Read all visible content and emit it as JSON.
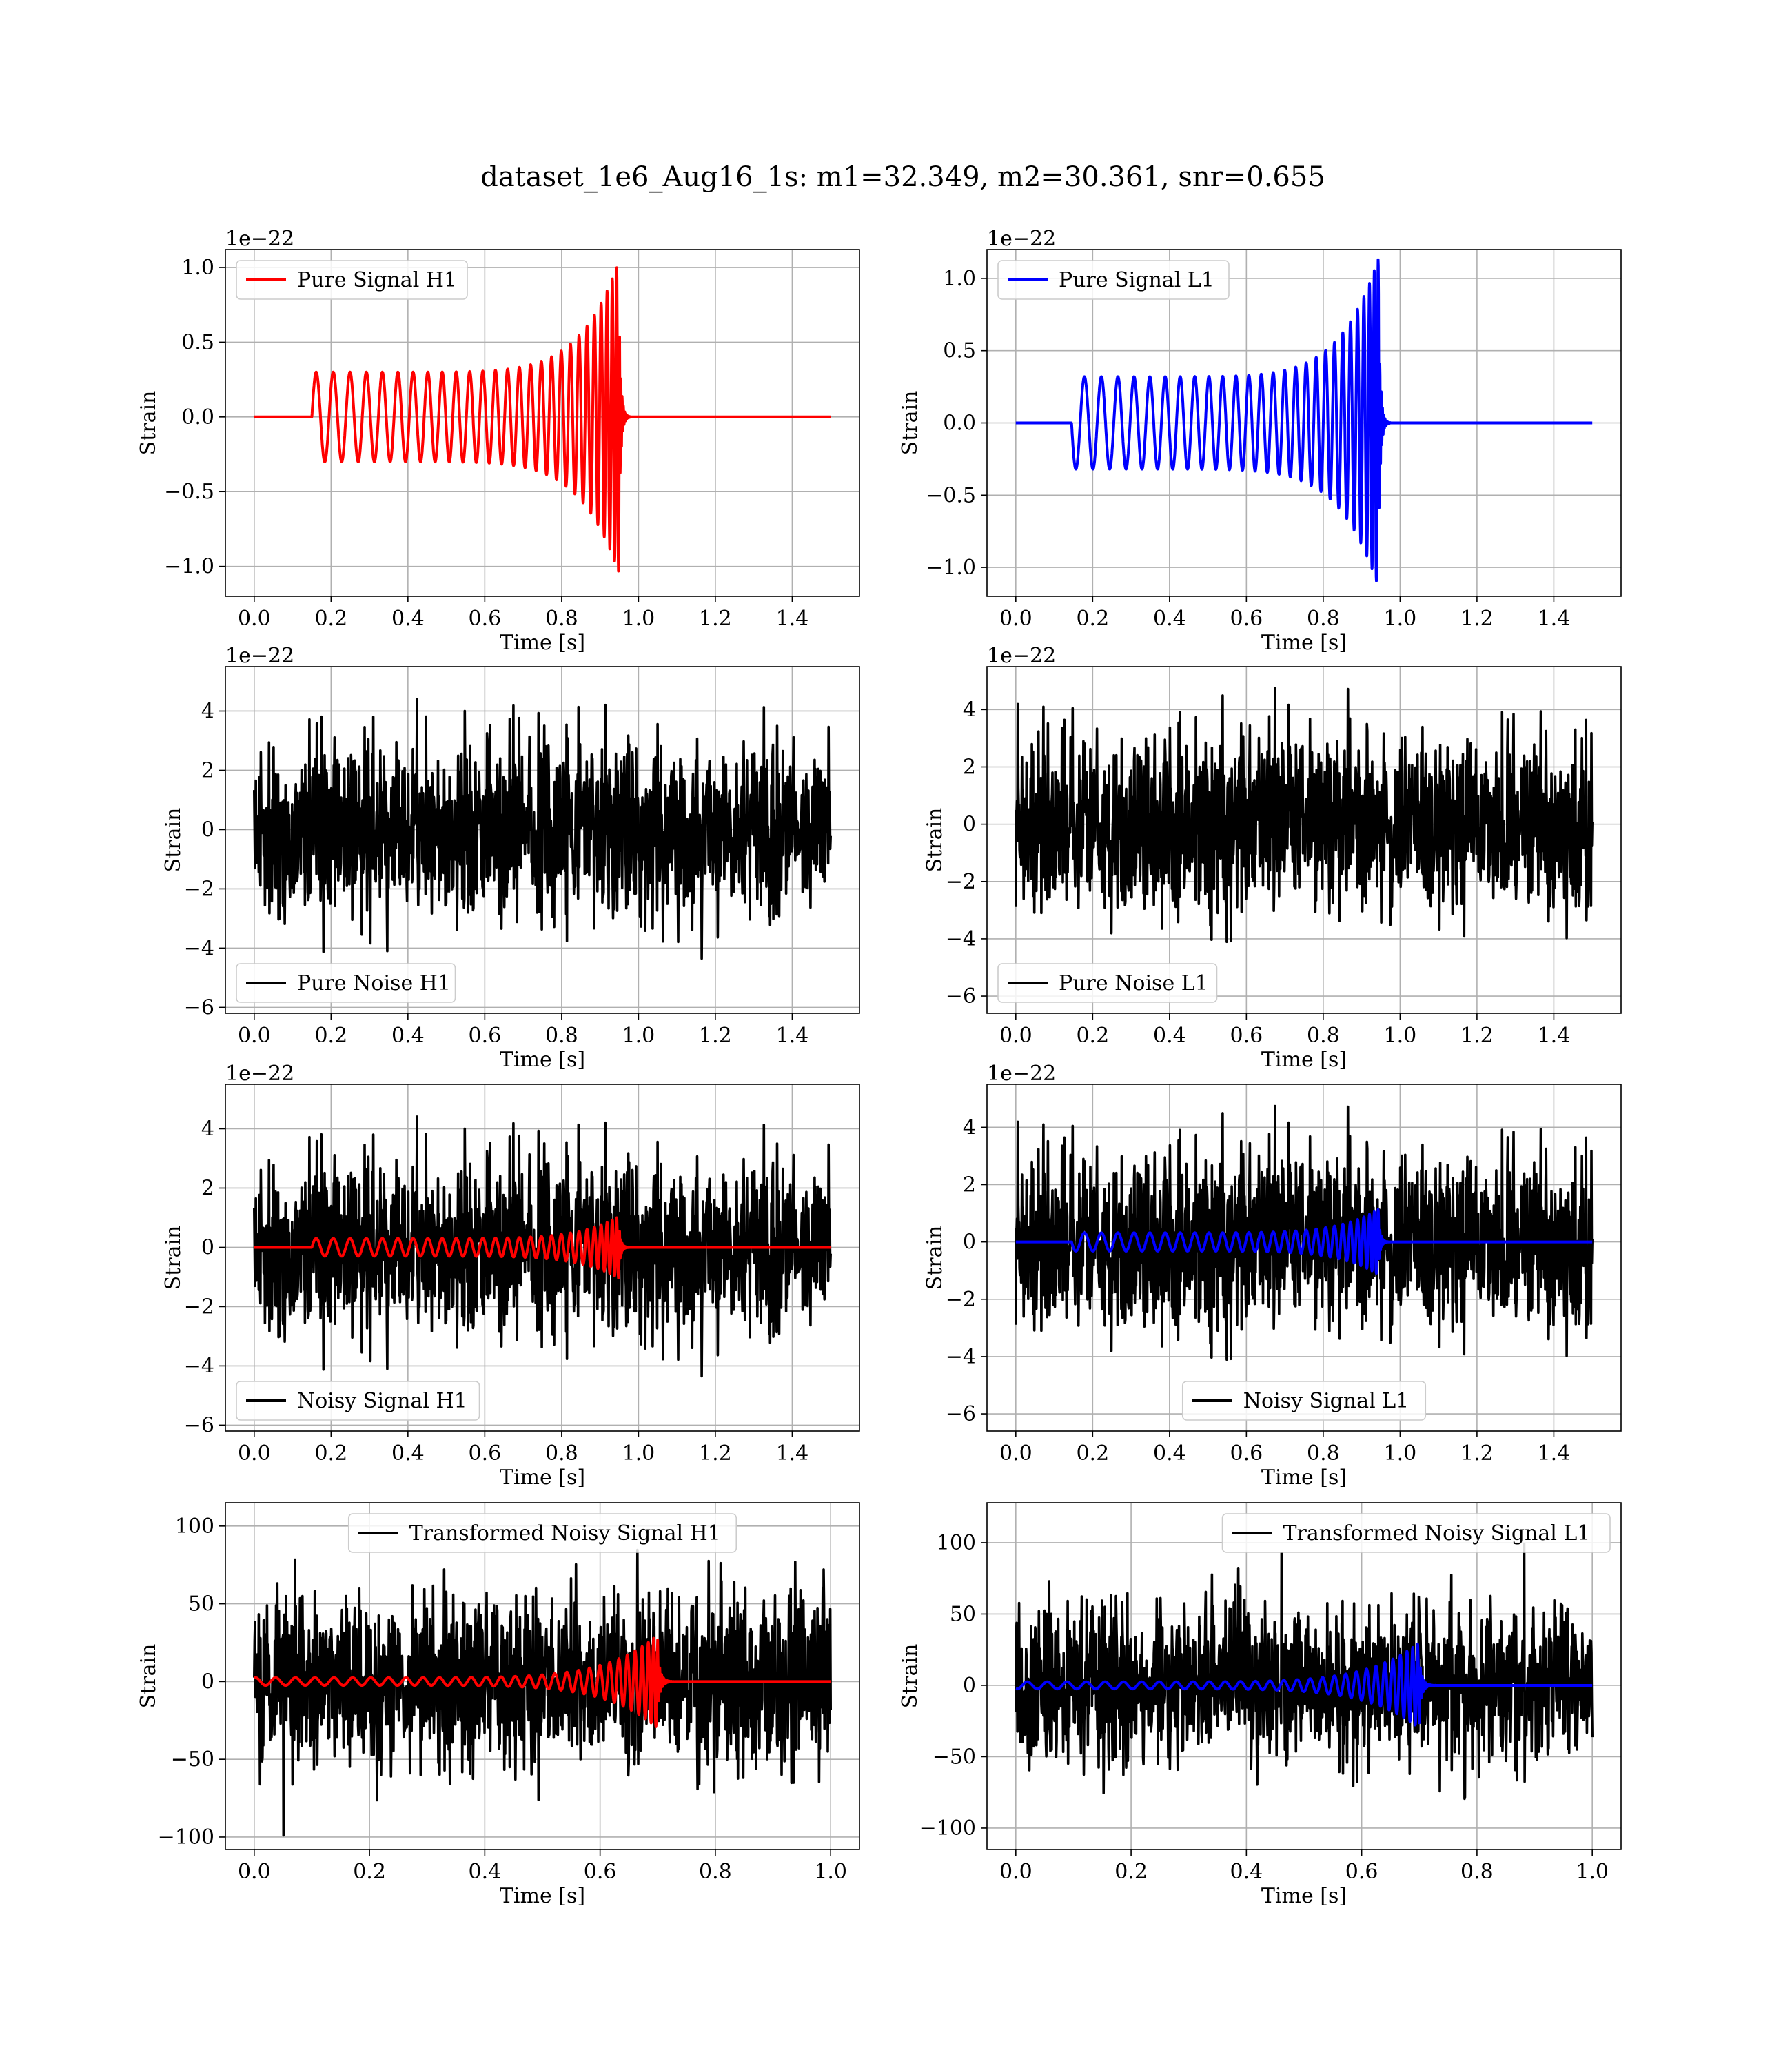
{
  "figure": {
    "suptitle": "dataset_1e6_Aug16_1s: m1=32.349, m2=30.361, snr=0.655"
  },
  "colors": {
    "h1_signal": "#ff0000",
    "l1_signal": "#0000ff",
    "noise": "#000000",
    "grid": "#b0b0b0",
    "legend_edge": "#cccccc"
  },
  "chart_data": [
    {
      "type": "line",
      "xlabel": "Time [s]",
      "ylabel": "Strain",
      "offset_text": "1e−22",
      "xlim": [
        -0.075,
        1.575
      ],
      "ylim": [
        -1.2,
        1.12
      ],
      "x_ticks": [
        0.0,
        0.2,
        0.4,
        0.6,
        0.8,
        1.0,
        1.2,
        1.4
      ],
      "x_tick_labels": [
        "0.0",
        "0.2",
        "0.4",
        "0.6",
        "0.8",
        "1.0",
        "1.2",
        "1.4"
      ],
      "y_ticks": [
        -1.0,
        -0.5,
        0.0,
        0.5,
        1.0
      ],
      "y_tick_labels": [
        "−1.0",
        "−0.5",
        "0.0",
        "0.5",
        "1.0"
      ],
      "grid": true,
      "legend_position": "upper left",
      "series": [
        {
          "name": "Pure Signal H1",
          "kind": "chirp",
          "color": "#ff0000",
          "x_range": [
            0,
            1.5
          ],
          "onset": 0.15,
          "merger": 0.95,
          "amp_start": 0.3,
          "amp_peak": 1.05,
          "cycles": 27,
          "phase": 0
        }
      ]
    },
    {
      "type": "line",
      "xlabel": "Time [s]",
      "ylabel": "Strain",
      "offset_text": "1e−22",
      "xlim": [
        -0.075,
        1.575
      ],
      "ylim": [
        -1.2,
        1.2
      ],
      "x_ticks": [
        0.0,
        0.2,
        0.4,
        0.6,
        0.8,
        1.0,
        1.2,
        1.4
      ],
      "x_tick_labels": [
        "0.0",
        "0.2",
        "0.4",
        "0.6",
        "0.8",
        "1.0",
        "1.2",
        "1.4"
      ],
      "y_ticks": [
        -1.0,
        -0.5,
        0.0,
        0.5,
        1.0
      ],
      "y_tick_labels": [
        "−1.0",
        "−0.5",
        "0.0",
        "0.5",
        "1.0"
      ],
      "grid": true,
      "legend_position": "upper left",
      "series": [
        {
          "name": "Pure Signal L1",
          "kind": "chirp",
          "color": "#0000ff",
          "x_range": [
            0,
            1.5
          ],
          "onset": 0.145,
          "merger": 0.945,
          "amp_start": 0.32,
          "amp_peak": 1.15,
          "cycles": 27,
          "phase": 3.14159
        }
      ]
    },
    {
      "type": "line",
      "xlabel": "Time [s]",
      "ylabel": "Strain",
      "offset_text": "1e−22",
      "xlim": [
        -0.075,
        1.575
      ],
      "ylim": [
        -6.2,
        5.5
      ],
      "x_ticks": [
        0.0,
        0.2,
        0.4,
        0.6,
        0.8,
        1.0,
        1.2,
        1.4
      ],
      "x_tick_labels": [
        "0.0",
        "0.2",
        "0.4",
        "0.6",
        "0.8",
        "1.0",
        "1.2",
        "1.4"
      ],
      "y_ticks": [
        -6,
        -4,
        -2,
        0,
        2,
        4
      ],
      "y_tick_labels": [
        "−6",
        "−4",
        "−2",
        "0",
        "2",
        "4"
      ],
      "grid": true,
      "legend_position": "lower left",
      "series": [
        {
          "name": "Pure Noise H1",
          "kind": "noise",
          "color": "#000000",
          "x_range": [
            0,
            1.5
          ],
          "std": 1.5,
          "seed": 11,
          "points": 1400
        }
      ]
    },
    {
      "type": "line",
      "xlabel": "Time [s]",
      "ylabel": "Strain",
      "offset_text": "1e−22",
      "xlim": [
        -0.075,
        1.575
      ],
      "ylim": [
        -6.6,
        5.5
      ],
      "x_ticks": [
        0.0,
        0.2,
        0.4,
        0.6,
        0.8,
        1.0,
        1.2,
        1.4
      ],
      "x_tick_labels": [
        "0.0",
        "0.2",
        "0.4",
        "0.6",
        "0.8",
        "1.0",
        "1.2",
        "1.4"
      ],
      "y_ticks": [
        -6,
        -4,
        -2,
        0,
        2,
        4
      ],
      "y_tick_labels": [
        "−6",
        "−4",
        "−2",
        "0",
        "2",
        "4"
      ],
      "grid": true,
      "legend_position": "lower left",
      "series": [
        {
          "name": "Pure Noise L1",
          "kind": "noise",
          "color": "#000000",
          "x_range": [
            0,
            1.5
          ],
          "std": 1.5,
          "seed": 23,
          "points": 1400
        }
      ]
    },
    {
      "type": "line",
      "xlabel": "Time [s]",
      "ylabel": "Strain",
      "offset_text": "1e−22",
      "xlim": [
        -0.075,
        1.575
      ],
      "ylim": [
        -6.2,
        5.5
      ],
      "x_ticks": [
        0.0,
        0.2,
        0.4,
        0.6,
        0.8,
        1.0,
        1.2,
        1.4
      ],
      "x_tick_labels": [
        "0.0",
        "0.2",
        "0.4",
        "0.6",
        "0.8",
        "1.0",
        "1.2",
        "1.4"
      ],
      "y_ticks": [
        -6,
        -4,
        -2,
        0,
        2,
        4
      ],
      "y_tick_labels": [
        "−6",
        "−4",
        "−2",
        "0",
        "2",
        "4"
      ],
      "grid": true,
      "legend_position": "lower left",
      "series": [
        {
          "name": "Noisy Signal H1",
          "kind": "noise",
          "color": "#000000",
          "x_range": [
            0,
            1.5
          ],
          "std": 1.5,
          "seed": 11,
          "points": 1400
        },
        {
          "kind": "chirp",
          "color": "#ff0000",
          "x_range": [
            0,
            1.5
          ],
          "onset": 0.15,
          "merger": 0.95,
          "amp_start": 0.3,
          "amp_peak": 1.05,
          "cycles": 27,
          "phase": 0
        }
      ]
    },
    {
      "type": "line",
      "xlabel": "Time [s]",
      "ylabel": "Strain",
      "offset_text": "1e−22",
      "xlim": [
        -0.075,
        1.575
      ],
      "ylim": [
        -6.6,
        5.5
      ],
      "x_ticks": [
        0.0,
        0.2,
        0.4,
        0.6,
        0.8,
        1.0,
        1.2,
        1.4
      ],
      "x_tick_labels": [
        "0.0",
        "0.2",
        "0.4",
        "0.6",
        "0.8",
        "1.0",
        "1.2",
        "1.4"
      ],
      "y_ticks": [
        -6,
        -4,
        -2,
        0,
        2,
        4
      ],
      "y_tick_labels": [
        "−6",
        "−4",
        "−2",
        "0",
        "2",
        "4"
      ],
      "grid": true,
      "legend_position": "lower center",
      "series": [
        {
          "name": "Noisy Signal L1",
          "kind": "noise",
          "color": "#000000",
          "x_range": [
            0,
            1.5
          ],
          "std": 1.5,
          "seed": 23,
          "points": 1400
        },
        {
          "kind": "chirp",
          "color": "#0000ff",
          "x_range": [
            0,
            1.5
          ],
          "onset": 0.145,
          "merger": 0.945,
          "amp_start": 0.32,
          "amp_peak": 1.15,
          "cycles": 27,
          "phase": 3.14159
        }
      ]
    },
    {
      "type": "line",
      "xlabel": "Time [s]",
      "ylabel": "Strain",
      "offset_text": "",
      "xlim": [
        -0.05,
        1.05
      ],
      "ylim": [
        -108,
        115
      ],
      "x_ticks": [
        0.0,
        0.2,
        0.4,
        0.6,
        0.8,
        1.0
      ],
      "x_tick_labels": [
        "0.0",
        "0.2",
        "0.4",
        "0.6",
        "0.8",
        "1.0"
      ],
      "y_ticks": [
        -100,
        -50,
        0,
        50,
        100
      ],
      "y_tick_labels": [
        "−100",
        "−50",
        "0",
        "50",
        "100"
      ],
      "grid": true,
      "legend_position": "upper center",
      "series": [
        {
          "name": "Transformed Noisy Signal H1",
          "kind": "noise",
          "color": "#000000",
          "x_range": [
            0,
            1.0
          ],
          "std": 28,
          "seed": 37,
          "points": 1400
        },
        {
          "kind": "chirp",
          "color": "#ff0000",
          "x_range": [
            0,
            1.0
          ],
          "onset": 0.0,
          "merger": 0.7,
          "amp_start": 2.5,
          "amp_peak": 30,
          "cycles": 30,
          "phase": 1.2
        }
      ]
    },
    {
      "type": "line",
      "xlabel": "Time [s]",
      "ylabel": "Strain",
      "offset_text": "",
      "xlim": [
        -0.05,
        1.05
      ],
      "ylim": [
        -115,
        128
      ],
      "x_ticks": [
        0.0,
        0.2,
        0.4,
        0.6,
        0.8,
        1.0
      ],
      "x_tick_labels": [
        "0.0",
        "0.2",
        "0.4",
        "0.6",
        "0.8",
        "1.0"
      ],
      "y_ticks": [
        -100,
        -50,
        0,
        50,
        100
      ],
      "y_tick_labels": [
        "−100",
        "−50",
        "0",
        "50",
        "100"
      ],
      "grid": true,
      "legend_position": "upper right",
      "series": [
        {
          "name": "Transformed Noisy Signal L1",
          "kind": "noise",
          "color": "#000000",
          "x_range": [
            0,
            1.0
          ],
          "std": 28,
          "seed": 53,
          "points": 1400
        },
        {
          "kind": "chirp",
          "color": "#0000ff",
          "x_range": [
            0,
            1.0
          ],
          "onset": 0.0,
          "merger": 0.7,
          "amp_start": 2.5,
          "amp_peak": 30,
          "cycles": 30,
          "phase": 4.3
        }
      ]
    }
  ]
}
